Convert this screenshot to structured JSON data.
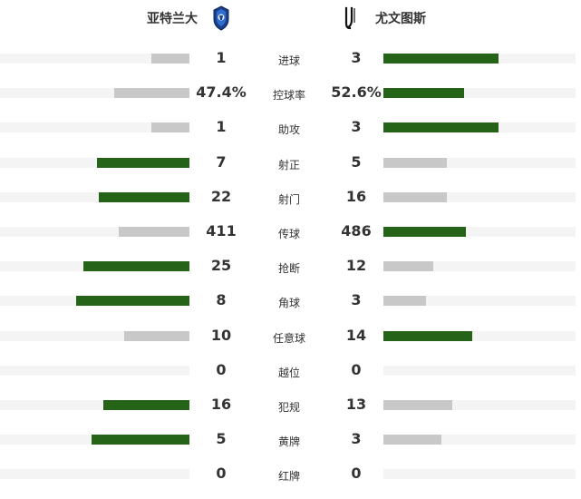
{
  "teams": {
    "home": {
      "name": "亚特兰大",
      "logo_icon": "atalanta-crest-icon"
    },
    "away": {
      "name": "尤文图斯",
      "logo_icon": "juventus-logo-icon"
    }
  },
  "colors": {
    "leader": "#256319",
    "trailer": "#c8c8c8",
    "track": "#f4f4f4"
  },
  "stats": [
    {
      "label": "进球",
      "home": "1",
      "away": "3",
      "home_fill": 0.2,
      "away_fill": 0.6,
      "leader": "away"
    },
    {
      "label": "控球率",
      "home": "47.4%",
      "away": "52.6%",
      "home_fill": 0.39,
      "away_fill": 0.42,
      "leader": "away"
    },
    {
      "label": "助攻",
      "home": "1",
      "away": "3",
      "home_fill": 0.2,
      "away_fill": 0.6,
      "leader": "away"
    },
    {
      "label": "射正",
      "home": "7",
      "away": "5",
      "home_fill": 0.48,
      "away_fill": 0.33,
      "leader": "home"
    },
    {
      "label": "射门",
      "home": "22",
      "away": "16",
      "home_fill": 0.47,
      "away_fill": 0.33,
      "leader": "home"
    },
    {
      "label": "传球",
      "home": "411",
      "away": "486",
      "home_fill": 0.37,
      "away_fill": 0.43,
      "leader": "away"
    },
    {
      "label": "抢断",
      "home": "25",
      "away": "12",
      "home_fill": 0.55,
      "away_fill": 0.26,
      "leader": "home"
    },
    {
      "label": "角球",
      "home": "8",
      "away": "3",
      "home_fill": 0.59,
      "away_fill": 0.22,
      "leader": "home"
    },
    {
      "label": "任意球",
      "home": "10",
      "away": "14",
      "home_fill": 0.34,
      "away_fill": 0.46,
      "leader": "away"
    },
    {
      "label": "越位",
      "home": "0",
      "away": "0",
      "home_fill": 0,
      "away_fill": 0,
      "leader": "none"
    },
    {
      "label": "犯规",
      "home": "16",
      "away": "13",
      "home_fill": 0.45,
      "away_fill": 0.36,
      "leader": "home"
    },
    {
      "label": "黄牌",
      "home": "5",
      "away": "3",
      "home_fill": 0.51,
      "away_fill": 0.3,
      "leader": "home"
    },
    {
      "label": "红牌",
      "home": "0",
      "away": "0",
      "home_fill": 0,
      "away_fill": 0,
      "leader": "none"
    }
  ]
}
